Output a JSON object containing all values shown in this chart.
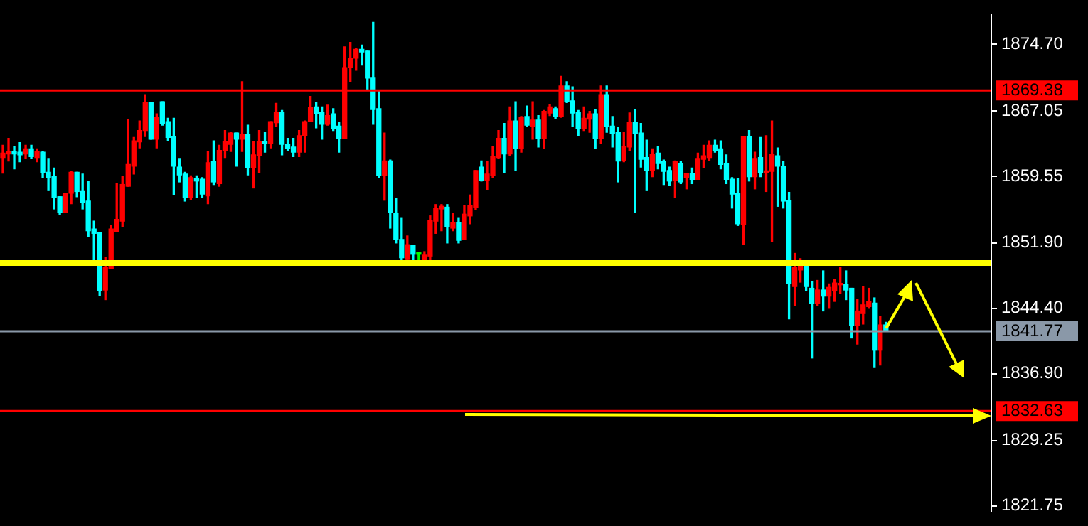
{
  "chart_data": {
    "type": "candlestick",
    "categories": [
      null,
      null,
      null,
      null,
      null,
      null,
      null,
      null,
      null,
      null,
      null,
      null,
      null,
      null,
      null,
      null,
      null,
      null,
      null,
      null,
      null,
      null,
      null,
      null,
      null,
      null,
      null,
      null,
      null,
      null,
      null,
      null,
      null,
      null,
      null,
      null,
      null,
      null,
      null,
      null,
      null,
      null,
      null,
      null,
      null,
      null,
      null,
      null,
      null,
      null,
      null,
      null,
      null,
      null,
      null,
      null,
      null,
      null,
      null,
      null,
      null,
      null,
      null,
      null,
      null,
      null,
      null,
      null,
      null,
      null,
      null,
      null,
      null,
      null,
      null,
      null,
      null,
      null,
      null,
      null,
      null,
      null,
      null,
      null,
      null,
      null,
      null,
      null,
      null,
      null,
      null,
      null,
      null,
      null,
      null,
      null,
      null,
      null,
      null,
      null,
      null,
      null,
      null,
      null,
      null,
      null,
      null,
      null,
      null,
      null,
      null,
      null,
      null,
      null,
      null,
      null,
      null,
      null,
      null,
      null,
      null,
      null,
      null,
      null,
      null,
      null,
      null,
      null,
      null,
      null,
      null,
      null,
      null,
      null,
      null,
      null,
      null,
      null,
      null,
      null,
      null,
      null,
      null,
      null,
      null,
      null,
      null,
      null,
      null,
      null,
      null,
      null,
      null,
      null,
      null,
      null,
      null,
      null,
      null,
      null,
      null,
      null,
      null,
      null,
      null,
      null,
      null,
      null,
      null,
      null,
      null,
      null,
      null,
      null
    ],
    "ohlc": [
      [
        1861.7,
        1863.1,
        1859.9,
        1862.2
      ],
      [
        1862.1,
        1863.9,
        1861.3,
        1862.4
      ],
      [
        1862.4,
        1863.0,
        1860.4,
        1862.1
      ],
      [
        1862.3,
        1863.4,
        1861.2,
        1862.0
      ],
      [
        1862.1,
        1863.1,
        1861.6,
        1862.7
      ],
      [
        1862.7,
        1863.1,
        1861.6,
        1861.8
      ],
      [
        1861.7,
        1862.7,
        1861.2,
        1862.4
      ],
      [
        1862.3,
        1862.4,
        1859.4,
        1860.0
      ],
      [
        1860.0,
        1861.6,
        1857.9,
        1859.4
      ],
      [
        1859.5,
        1860.5,
        1855.8,
        1857.1
      ],
      [
        1857.2,
        1857.2,
        1855.2,
        1855.4
      ],
      [
        1855.4,
        1857.6,
        1855.4,
        1857.6
      ],
      [
        1857.6,
        1860.1,
        1856.4,
        1860.0
      ],
      [
        1860.0,
        1860.0,
        1857.2,
        1857.8
      ],
      [
        1857.8,
        1859.8,
        1855.8,
        1856.5
      ],
      [
        1856.7,
        1859.0,
        1852.6,
        1853.3
      ],
      [
        1853.5,
        1854.4,
        1849.6,
        1853.0
      ],
      [
        1853.1,
        1853.1,
        1845.9,
        1846.4
      ],
      [
        1846.5,
        1850.2,
        1845.4,
        1849.1
      ],
      [
        1849.0,
        1853.9,
        1849.0,
        1853.5
      ],
      [
        1853.2,
        1858.7,
        1853.2,
        1854.6
      ],
      [
        1854.4,
        1859.5,
        1853.8,
        1858.6
      ],
      [
        1858.4,
        1866.1,
        1858.4,
        1860.9
      ],
      [
        1860.7,
        1864.0,
        1859.8,
        1863.6
      ],
      [
        1863.5,
        1865.9,
        1862.8,
        1864.8
      ],
      [
        1864.8,
        1868.9,
        1864.1,
        1868.0
      ],
      [
        1868.0,
        1868.0,
        1863.8,
        1863.8
      ],
      [
        1863.8,
        1866.7,
        1862.8,
        1866.3
      ],
      [
        1868.1,
        1868.1,
        1865.4,
        1865.6
      ],
      [
        1865.8,
        1866.2,
        1863.6,
        1864.0
      ],
      [
        1864.1,
        1866.2,
        1857.4,
        1860.7
      ],
      [
        1860.6,
        1861.6,
        1858.9,
        1859.7
      ],
      [
        1859.8,
        1860.0,
        1856.7,
        1857.1
      ],
      [
        1857.1,
        1859.6,
        1856.9,
        1859.4
      ],
      [
        1859.3,
        1859.6,
        1857.1,
        1859.0
      ],
      [
        1859.2,
        1859.4,
        1857.1,
        1857.5
      ],
      [
        1857.3,
        1862.4,
        1856.4,
        1861.1
      ],
      [
        1861.2,
        1863.6,
        1858.6,
        1858.9
      ],
      [
        1858.7,
        1863.1,
        1858.4,
        1862.5
      ],
      [
        1862.5,
        1864.8,
        1861.7,
        1863.5
      ],
      [
        1863.2,
        1864.6,
        1862.4,
        1864.5
      ],
      [
        1864.5,
        1864.5,
        1860.7,
        1863.8
      ],
      [
        1863.8,
        1870.4,
        1862.4,
        1864.3
      ],
      [
        1864.3,
        1865.4,
        1859.7,
        1860.5
      ],
      [
        1860.5,
        1863.5,
        1858.2,
        1862.0
      ],
      [
        1861.9,
        1864.8,
        1860.0,
        1863.5
      ],
      [
        1863.5,
        1864.6,
        1862.3,
        1863.3
      ],
      [
        1863.3,
        1865.8,
        1862.8,
        1865.8
      ],
      [
        1865.7,
        1867.9,
        1865.3,
        1866.9
      ],
      [
        1866.9,
        1867.1,
        1862.0,
        1863.2
      ],
      [
        1863.2,
        1863.9,
        1862.5,
        1862.7
      ],
      [
        1862.9,
        1863.9,
        1861.8,
        1862.3
      ],
      [
        1862.3,
        1864.8,
        1861.8,
        1864.2
      ],
      [
        1864.2,
        1865.9,
        1862.3,
        1865.8
      ],
      [
        1865.8,
        1868.7,
        1865.8,
        1867.4
      ],
      [
        1867.5,
        1868.0,
        1865.1,
        1866.7
      ],
      [
        1866.9,
        1867.5,
        1863.8,
        1865.5
      ],
      [
        1865.5,
        1867.7,
        1865.4,
        1866.5
      ],
      [
        1866.7,
        1867.3,
        1864.8,
        1865.0
      ],
      [
        1865.3,
        1865.7,
        1862.3,
        1863.9
      ],
      [
        1863.9,
        1874.4,
        1863.9,
        1872.0
      ],
      [
        1872.0,
        1874.9,
        1870.4,
        1873.1
      ],
      [
        1873.1,
        1874.2,
        1871.7,
        1874.1
      ],
      [
        1874.1,
        1874.6,
        1872.3,
        1873.8
      ],
      [
        1873.9,
        1873.9,
        1869.4,
        1870.8
      ],
      [
        1870.8,
        1877.2,
        1865.5,
        1867.2
      ],
      [
        1867.3,
        1869.3,
        1859.4,
        1859.6
      ],
      [
        1859.6,
        1864.5,
        1856.8,
        1861.3
      ],
      [
        1861.3,
        1861.4,
        1853.6,
        1855.4
      ],
      [
        1855.3,
        1857.0,
        1851.9,
        1852.3
      ],
      [
        1852.3,
        1854.8,
        1849.6,
        1850.2
      ],
      [
        1850.0,
        1852.7,
        1849.7,
        1851.7
      ],
      [
        1851.6,
        1851.6,
        1849.7,
        1850.6
      ],
      [
        1850.7,
        1850.8,
        1849.7,
        1850.6
      ],
      [
        1849.9,
        1850.9,
        1849.7,
        1850.5
      ],
      [
        1850.4,
        1855.0,
        1849.7,
        1854.5
      ],
      [
        1854.4,
        1856.3,
        1853.0,
        1855.9
      ],
      [
        1855.8,
        1856.3,
        1853.3,
        1856.1
      ],
      [
        1856.0,
        1856.3,
        1851.9,
        1853.8
      ],
      [
        1853.6,
        1855.3,
        1853.3,
        1854.2
      ],
      [
        1854.2,
        1854.8,
        1851.9,
        1852.2
      ],
      [
        1852.3,
        1856.2,
        1852.3,
        1855.2
      ],
      [
        1855.0,
        1857.4,
        1854.1,
        1856.2
      ],
      [
        1856.0,
        1860.2,
        1855.7,
        1860.2
      ],
      [
        1860.6,
        1861.3,
        1859.0,
        1859.1
      ],
      [
        1859.1,
        1861.2,
        1858.0,
        1859.8
      ],
      [
        1859.6,
        1863.0,
        1859.4,
        1861.8
      ],
      [
        1861.7,
        1864.8,
        1861.6,
        1863.9
      ],
      [
        1863.9,
        1865.6,
        1860.0,
        1862.1
      ],
      [
        1862.1,
        1867.5,
        1861.9,
        1865.9
      ],
      [
        1865.9,
        1868.1,
        1860.2,
        1862.7
      ],
      [
        1862.7,
        1866.4,
        1862.3,
        1866.3
      ],
      [
        1866.4,
        1867.6,
        1865.3,
        1865.4
      ],
      [
        1865.3,
        1868.1,
        1863.8,
        1866.0
      ],
      [
        1866.0,
        1866.5,
        1862.9,
        1863.9
      ],
      [
        1863.9,
        1867.1,
        1862.7,
        1867.0
      ],
      [
        1866.8,
        1867.8,
        1866.5,
        1867.5
      ],
      [
        1867.3,
        1867.5,
        1866.2,
        1866.4
      ],
      [
        1866.4,
        1871.0,
        1866.3,
        1869.9
      ],
      [
        1869.9,
        1870.4,
        1868.0,
        1868.1
      ],
      [
        1868.2,
        1869.8,
        1865.3,
        1866.8
      ],
      [
        1866.9,
        1867.1,
        1864.2,
        1865.0
      ],
      [
        1865.0,
        1867.5,
        1864.8,
        1866.2
      ],
      [
        1866.1,
        1867.0,
        1864.6,
        1866.7
      ],
      [
        1866.7,
        1867.2,
        1862.7,
        1863.9
      ],
      [
        1863.9,
        1869.9,
        1863.3,
        1868.9
      ],
      [
        1868.9,
        1869.9,
        1864.6,
        1865.3
      ],
      [
        1865.3,
        1866.4,
        1862.9,
        1864.5
      ],
      [
        1864.6,
        1865.2,
        1858.9,
        1861.3
      ],
      [
        1861.4,
        1864.6,
        1861.2,
        1863.0
      ],
      [
        1862.9,
        1866.8,
        1862.5,
        1865.7
      ],
      [
        1865.7,
        1867.2,
        1855.4,
        1864.5
      ],
      [
        1864.5,
        1865.6,
        1860.6,
        1861.5
      ],
      [
        1861.7,
        1863.7,
        1857.9,
        1860.2
      ],
      [
        1860.2,
        1862.7,
        1859.5,
        1862.1
      ],
      [
        1862.2,
        1863.0,
        1860.4,
        1861.0
      ],
      [
        1861.2,
        1861.4,
        1858.6,
        1860.1
      ],
      [
        1860.2,
        1860.6,
        1858.5,
        1859.0
      ],
      [
        1859.1,
        1861.3,
        1857.1,
        1861.2
      ],
      [
        1861.0,
        1861.2,
        1858.7,
        1858.9
      ],
      [
        1859.4,
        1859.9,
        1858.1,
        1859.9
      ],
      [
        1859.9,
        1860.5,
        1858.7,
        1859.2
      ],
      [
        1859.2,
        1862.2,
        1859.2,
        1861.6
      ],
      [
        1861.5,
        1863.1,
        1860.5,
        1861.9
      ],
      [
        1861.7,
        1863.6,
        1861.4,
        1863.1
      ],
      [
        1863.1,
        1863.7,
        1862.3,
        1862.5
      ],
      [
        1862.7,
        1863.6,
        1860.4,
        1860.9
      ],
      [
        1861.0,
        1862.0,
        1858.7,
        1859.2
      ],
      [
        1859.2,
        1859.4,
        1855.9,
        1857.5
      ],
      [
        1857.6,
        1859.3,
        1853.9,
        1854.1
      ],
      [
        1854.0,
        1864.1,
        1851.7,
        1864.1
      ],
      [
        1864.1,
        1864.8,
        1859.0,
        1859.5
      ],
      [
        1859.5,
        1862.3,
        1858.1,
        1861.6
      ],
      [
        1861.7,
        1864.0,
        1859.5,
        1860.0
      ],
      [
        1860.0,
        1864.2,
        1857.8,
        1860.1
      ],
      [
        1860.1,
        1865.9,
        1852.1,
        1862.1
      ],
      [
        1861.9,
        1862.8,
        1856.1,
        1860.7
      ],
      [
        1860.7,
        1861.2,
        1855.9,
        1856.7
      ],
      [
        1856.8,
        1857.7,
        1843.2,
        1847.2
      ],
      [
        1846.9,
        1850.7,
        1844.7,
        1849.1
      ],
      [
        1848.8,
        1850.1,
        1847.4,
        1849.4
      ],
      [
        1849.4,
        1849.6,
        1846.4,
        1846.9
      ],
      [
        1846.7,
        1847.5,
        1838.7,
        1845.0
      ],
      [
        1845.0,
        1847.6,
        1844.7,
        1846.5
      ],
      [
        1846.5,
        1848.7,
        1844.1,
        1845.8
      ],
      [
        1845.8,
        1847.2,
        1844.4,
        1846.8
      ],
      [
        1846.4,
        1847.7,
        1845.2,
        1847.3
      ],
      [
        1847.1,
        1849.1,
        1846.1,
        1847.2
      ],
      [
        1847.1,
        1848.7,
        1845.4,
        1846.5
      ],
      [
        1846.7,
        1846.7,
        1841.0,
        1842.4
      ],
      [
        1842.4,
        1845.4,
        1840.3,
        1844.1
      ],
      [
        1843.8,
        1846.9,
        1842.6,
        1844.8
      ],
      [
        1844.6,
        1846.7,
        1844.4,
        1845.2
      ],
      [
        1845.0,
        1845.6,
        1837.6,
        1839.6
      ],
      [
        1839.6,
        1843.5,
        1837.9,
        1842.5
      ],
      [
        1842.5,
        1842.8,
        1841.8,
        1841.8
      ],
      null,
      null,
      null,
      null,
      null,
      null,
      null,
      null,
      null,
      null,
      null,
      null,
      null,
      null,
      null,
      null,
      null,
      null
    ],
    "colors": [
      "#ff0000",
      "#ff0000",
      "#00ffff",
      "#00ffff",
      "#ff0000",
      "#00ffff",
      "#ff0000",
      "#00ffff",
      "#00ffff",
      "#00ffff",
      "#00ffff",
      "#ff0000",
      "#ff0000",
      "#00ffff",
      "#00ffff",
      "#00ffff",
      "#00ffff",
      "#00ffff",
      "#ff0000",
      "#ff0000",
      "#ff0000",
      "#ff0000",
      "#ff0000",
      "#ff0000",
      "#ff0000",
      "#ff0000",
      "#00ffff",
      "#ff0000",
      "#00ffff",
      "#00ffff",
      "#00ffff",
      "#00ffff",
      "#00ffff",
      "#ff0000",
      "#00ffff",
      "#00ffff",
      "#ff0000",
      "#00ffff",
      "#ff0000",
      "#ff0000",
      "#ff0000",
      "#00ffff",
      "#ff0000",
      "#00ffff",
      "#ff0000",
      "#ff0000",
      "#00ffff",
      "#ff0000",
      "#ff0000",
      "#00ffff",
      "#00ffff",
      "#00ffff",
      "#ff0000",
      "#ff0000",
      "#ff0000",
      "#00ffff",
      "#00ffff",
      "#ff0000",
      "#00ffff",
      "#00ffff",
      "#ff0000",
      "#ff0000",
      "#ff0000",
      "#00ffff",
      "#00ffff",
      "#00ffff",
      "#00ffff",
      "#ff0000",
      "#00ffff",
      "#00ffff",
      "#00ffff",
      "#ff0000",
      "#00ffff",
      "#00ff00",
      "#ff0000",
      "#ff0000",
      "#ff0000",
      "#ff0000",
      "#00ffff",
      "#ff0000",
      "#00ffff",
      "#ff0000",
      "#ff0000",
      "#ff0000",
      "#00ffff",
      "#ff0000",
      "#ff0000",
      "#ff0000",
      "#00ffff",
      "#ff0000",
      "#00ffff",
      "#ff0000",
      "#00ffff",
      "#ff0000",
      "#00ffff",
      "#ff0000",
      "#ff0000",
      "#00ffff",
      "#ff0000",
      "#00ffff",
      "#00ffff",
      "#00ffff",
      "#ff0000",
      "#ff0000",
      "#00ffff",
      "#ff0000",
      "#00ffff",
      "#00ffff",
      "#00ffff",
      "#ff0000",
      "#ff0000",
      "#00ffff",
      "#00ffff",
      "#00ffff",
      "#ff0000",
      "#00ffff",
      "#00ffff",
      "#00ffff",
      "#ff0000",
      "#00ffff",
      "#ff0000",
      "#00ffff",
      "#ff0000",
      "#ff0000",
      "#ff0000",
      "#00ffff",
      "#00ffff",
      "#00ffff",
      "#00ffff",
      "#00ffff",
      "#ff0000",
      "#00ffff",
      "#ff0000",
      "#00ffff",
      "#ff0000",
      "#ff0000",
      "#00ffff",
      "#00ffff",
      "#00ffff",
      "#ff0000",
      "#ff0000",
      "#00ffff",
      "#00ffff",
      "#ff0000",
      "#00ffff",
      "#ff0000",
      "#ff0000",
      "#ff0000",
      "#00ffff",
      "#00ffff",
      "#ff0000",
      "#ff0000",
      "#ff0000",
      "#00ffff",
      "#ff0000",
      "#00ffff",
      null,
      null,
      null,
      null,
      null,
      null,
      null,
      null,
      null,
      null,
      null,
      null,
      null,
      null,
      null,
      null,
      null,
      null
    ],
    "ylim": [
      1821.1,
      1878.1
    ],
    "yticks": [
      {
        "value": 1874.7,
        "label": "1874.70"
      },
      {
        "value": 1867.05,
        "label": "1867.05"
      },
      {
        "value": 1859.55,
        "label": "1859.55"
      },
      {
        "value": 1851.9,
        "label": "1851.90"
      },
      {
        "value": 1844.4,
        "label": "1844.40"
      },
      {
        "value": 1836.9,
        "label": "1836.90"
      },
      {
        "value": 1829.25,
        "label": "1829.25"
      },
      {
        "value": 1821.75,
        "label": "1821.75"
      }
    ],
    "ref_lines": [
      {
        "axis": "y",
        "value": 1869.38,
        "label": "1869.38",
        "color": "#ff0000"
      },
      {
        "axis": "y",
        "value": 1849.6,
        "color": "#ffff00"
      },
      {
        "axis": "y",
        "value": 1841.77,
        "label": "1841.77",
        "color": "#8a98a8"
      },
      {
        "axis": "y",
        "value": 1832.63,
        "label": "1832.63",
        "color": "#ff0000"
      }
    ],
    "tick_labels": "y"
  }
}
